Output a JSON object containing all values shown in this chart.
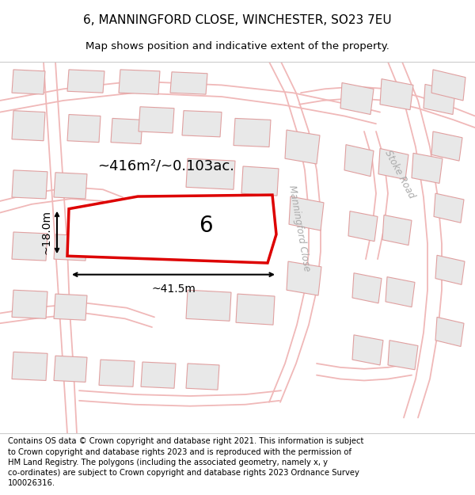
{
  "title_line1": "6, MANNINGFORD CLOSE, WINCHESTER, SO23 7EU",
  "title_line2": "Map shows position and indicative extent of the property.",
  "footer_text": "Contains OS data © Crown copyright and database right 2021. This information is subject\nto Crown copyright and database rights 2023 and is reproduced with the permission of\nHM Land Registry. The polygons (including the associated geometry, namely x, y\nco-ordinates) are subject to Crown copyright and database rights 2023 Ordnance Survey\n100026316.",
  "background_color": "#ffffff",
  "map_bg_color": "#f7f7f7",
  "building_fill": "#e8e8e8",
  "building_edge": "#e0a0a0",
  "road_color": "#f0b8b8",
  "subject_polygon_color": "#dd0000",
  "subject_label": "6",
  "area_label": "~416m²/~0.103ac.",
  "width_label": "~41.5m",
  "height_label": "~18.0m",
  "road_label_1": "Stoke Road",
  "road_label_2": "Manningford Close",
  "title_fontsize": 11,
  "subtitle_fontsize": 9.5,
  "footer_fontsize": 7.2,
  "map_xlim": [
    0,
    600
  ],
  "map_ylim": [
    0,
    480
  ]
}
